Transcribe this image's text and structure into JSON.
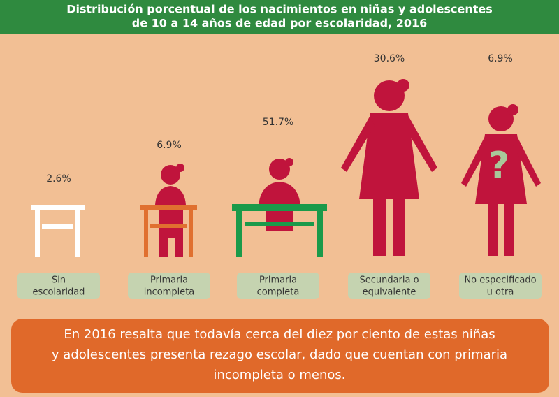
{
  "header": {
    "title": [
      "Distribución porcentual de los nacimientos en niñas y adolescentes",
      "de 10 a 14 años de edad por escolaridad,  2016"
    ]
  },
  "items": [
    {
      "label": [
        "Sin",
        "escolaridad"
      ],
      "value": "2.6%"
    },
    {
      "label": [
        "Primaria",
        "incompleta"
      ],
      "value": "6.9%"
    },
    {
      "label": [
        "Primaria",
        "completa"
      ],
      "value": "51.7%"
    },
    {
      "label": [
        "Secundaria o",
        "equivalente"
      ],
      "value": "30.6%"
    },
    {
      "label": [
        "No especificado",
        "u otra"
      ],
      "value": "6.9%"
    }
  ],
  "note": [
    "En 2016 resalta que todavía cerca del diez por ciento de estas niñas",
    "y adolescentes presenta rezago escolar, dado que cuentan con primaria",
    "incompleta o menos."
  ]
}
